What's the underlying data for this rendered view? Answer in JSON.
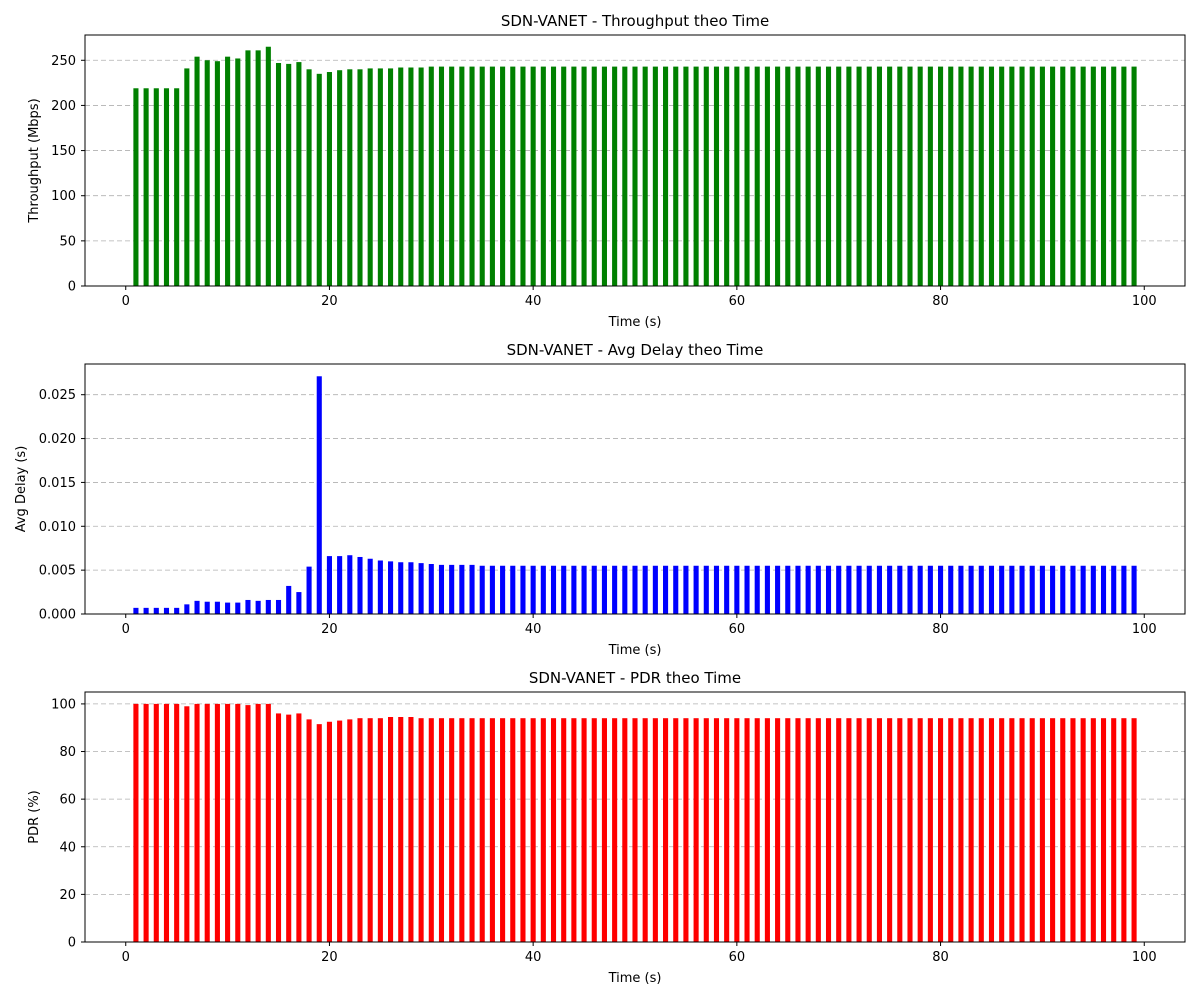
{
  "chart_data": [
    {
      "type": "bar",
      "title": "SDN-VANET - Throughput theo Time",
      "xlabel": "Time (s)",
      "ylabel": "Throughput (Mbps)",
      "color": "#008000",
      "grid": "y-dashed",
      "xlim": [
        -4,
        104
      ],
      "ylim": [
        0,
        278
      ],
      "xticks": [
        0,
        20,
        40,
        60,
        80,
        100
      ],
      "yticks": [
        0,
        50,
        100,
        150,
        200,
        250
      ],
      "x": [
        1,
        2,
        3,
        4,
        5,
        6,
        7,
        8,
        9,
        10,
        11,
        12,
        13,
        14,
        15,
        16,
        17,
        18,
        19,
        20,
        21,
        22,
        23,
        24,
        25,
        26,
        27,
        28,
        29,
        30,
        31,
        32,
        33,
        34,
        35,
        36,
        37,
        38,
        39,
        40,
        41,
        42,
        43,
        44,
        45,
        46,
        47,
        48,
        49,
        50,
        51,
        52,
        53,
        54,
        55,
        56,
        57,
        58,
        59,
        60,
        61,
        62,
        63,
        64,
        65,
        66,
        67,
        68,
        69,
        70,
        71,
        72,
        73,
        74,
        75,
        76,
        77,
        78,
        79,
        80,
        81,
        82,
        83,
        84,
        85,
        86,
        87,
        88,
        89,
        90,
        91,
        92,
        93,
        94,
        95,
        96,
        97,
        98,
        99
      ],
      "values": [
        219,
        219,
        219,
        219,
        219,
        241,
        254,
        250,
        249,
        254,
        252,
        261,
        261,
        265,
        247,
        246,
        248,
        240,
        235,
        237,
        239,
        240,
        240,
        241,
        241,
        241,
        242,
        242,
        242,
        243,
        243,
        243,
        243,
        243,
        243,
        243,
        243,
        243,
        243,
        243,
        243,
        243,
        243,
        243,
        243,
        243,
        243,
        243,
        243,
        243,
        243,
        243,
        243,
        243,
        243,
        243,
        243,
        243,
        243,
        243,
        243,
        243,
        243,
        243,
        243,
        243,
        243,
        243,
        243,
        243,
        243,
        243,
        243,
        243,
        243,
        243,
        243,
        243,
        243,
        243,
        243,
        243,
        243,
        243,
        243,
        243,
        243,
        243,
        243,
        243,
        243,
        243,
        243,
        243,
        243,
        243,
        243,
        243,
        243
      ]
    },
    {
      "type": "bar",
      "title": "SDN-VANET - Avg Delay theo Time",
      "xlabel": "Time (s)",
      "ylabel": "Avg Delay (s)",
      "color": "#0000ff",
      "grid": "y-dashed",
      "xlim": [
        -4,
        104
      ],
      "ylim": [
        0,
        0.0285
      ],
      "xticks": [
        0,
        20,
        40,
        60,
        80,
        100
      ],
      "yticks": [
        0.0,
        0.005,
        0.01,
        0.015,
        0.02,
        0.025
      ],
      "ytick_decimals": 3,
      "x": [
        1,
        2,
        3,
        4,
        5,
        6,
        7,
        8,
        9,
        10,
        11,
        12,
        13,
        14,
        15,
        16,
        17,
        18,
        19,
        20,
        21,
        22,
        23,
        24,
        25,
        26,
        27,
        28,
        29,
        30,
        31,
        32,
        33,
        34,
        35,
        36,
        37,
        38,
        39,
        40,
        41,
        42,
        43,
        44,
        45,
        46,
        47,
        48,
        49,
        50,
        51,
        52,
        53,
        54,
        55,
        56,
        57,
        58,
        59,
        60,
        61,
        62,
        63,
        64,
        65,
        66,
        67,
        68,
        69,
        70,
        71,
        72,
        73,
        74,
        75,
        76,
        77,
        78,
        79,
        80,
        81,
        82,
        83,
        84,
        85,
        86,
        87,
        88,
        89,
        90,
        91,
        92,
        93,
        94,
        95,
        96,
        97,
        98,
        99
      ],
      "values": [
        0.0007,
        0.0007,
        0.0007,
        0.0007,
        0.0007,
        0.0011,
        0.0015,
        0.0014,
        0.0014,
        0.0013,
        0.0013,
        0.0016,
        0.0015,
        0.0016,
        0.0016,
        0.0032,
        0.0025,
        0.0054,
        0.0271,
        0.0066,
        0.0066,
        0.0067,
        0.0065,
        0.0063,
        0.0061,
        0.006,
        0.0059,
        0.0059,
        0.0058,
        0.0057,
        0.0056,
        0.0056,
        0.0056,
        0.0056,
        0.0055,
        0.0055,
        0.0055,
        0.0055,
        0.0055,
        0.0055,
        0.0055,
        0.0055,
        0.0055,
        0.0055,
        0.0055,
        0.0055,
        0.0055,
        0.0055,
        0.0055,
        0.0055,
        0.0055,
        0.0055,
        0.0055,
        0.0055,
        0.0055,
        0.0055,
        0.0055,
        0.0055,
        0.0055,
        0.0055,
        0.0055,
        0.0055,
        0.0055,
        0.0055,
        0.0055,
        0.0055,
        0.0055,
        0.0055,
        0.0055,
        0.0055,
        0.0055,
        0.0055,
        0.0055,
        0.0055,
        0.0055,
        0.0055,
        0.0055,
        0.0055,
        0.0055,
        0.0055,
        0.0055,
        0.0055,
        0.0055,
        0.0055,
        0.0055,
        0.0055,
        0.0055,
        0.0055,
        0.0055,
        0.0055,
        0.0055,
        0.0055,
        0.0055,
        0.0055,
        0.0055,
        0.0055,
        0.0055,
        0.0055,
        0.0055
      ]
    },
    {
      "type": "bar",
      "title": "SDN-VANET - PDR theo Time",
      "xlabel": "Time (s)",
      "ylabel": "PDR (%)",
      "color": "#ff0000",
      "grid": "y-dashed",
      "xlim": [
        -4,
        104
      ],
      "ylim": [
        0,
        105
      ],
      "xticks": [
        0,
        20,
        40,
        60,
        80,
        100
      ],
      "yticks": [
        0,
        20,
        40,
        60,
        80,
        100
      ],
      "x": [
        1,
        2,
        3,
        4,
        5,
        6,
        7,
        8,
        9,
        10,
        11,
        12,
        13,
        14,
        15,
        16,
        17,
        18,
        19,
        20,
        21,
        22,
        23,
        24,
        25,
        26,
        27,
        28,
        29,
        30,
        31,
        32,
        33,
        34,
        35,
        36,
        37,
        38,
        39,
        40,
        41,
        42,
        43,
        44,
        45,
        46,
        47,
        48,
        49,
        50,
        51,
        52,
        53,
        54,
        55,
        56,
        57,
        58,
        59,
        60,
        61,
        62,
        63,
        64,
        65,
        66,
        67,
        68,
        69,
        70,
        71,
        72,
        73,
        74,
        75,
        76,
        77,
        78,
        79,
        80,
        81,
        82,
        83,
        84,
        85,
        86,
        87,
        88,
        89,
        90,
        91,
        92,
        93,
        94,
        95,
        96,
        97,
        98,
        99
      ],
      "values": [
        100,
        100,
        100,
        100,
        100,
        99,
        100,
        100,
        100,
        100,
        100,
        99.5,
        100,
        100,
        96,
        95.5,
        96,
        93.5,
        91.5,
        92.5,
        93,
        93.5,
        94,
        94,
        94,
        94.5,
        94.5,
        94.5,
        94,
        94,
        94,
        94,
        94,
        94,
        94,
        94,
        94,
        94,
        94,
        94,
        94,
        94,
        94,
        94,
        94,
        94,
        94,
        94,
        94,
        94,
        94,
        94,
        94,
        94,
        94,
        94,
        94,
        94,
        94,
        94,
        94,
        94,
        94,
        94,
        94,
        94,
        94,
        94,
        94,
        94,
        94,
        94,
        94,
        94,
        94,
        94,
        94,
        94,
        94,
        94,
        94,
        94,
        94,
        94,
        94,
        94,
        94,
        94,
        94,
        94,
        94,
        94,
        94,
        94,
        94,
        94,
        94,
        94,
        94
      ]
    }
  ]
}
